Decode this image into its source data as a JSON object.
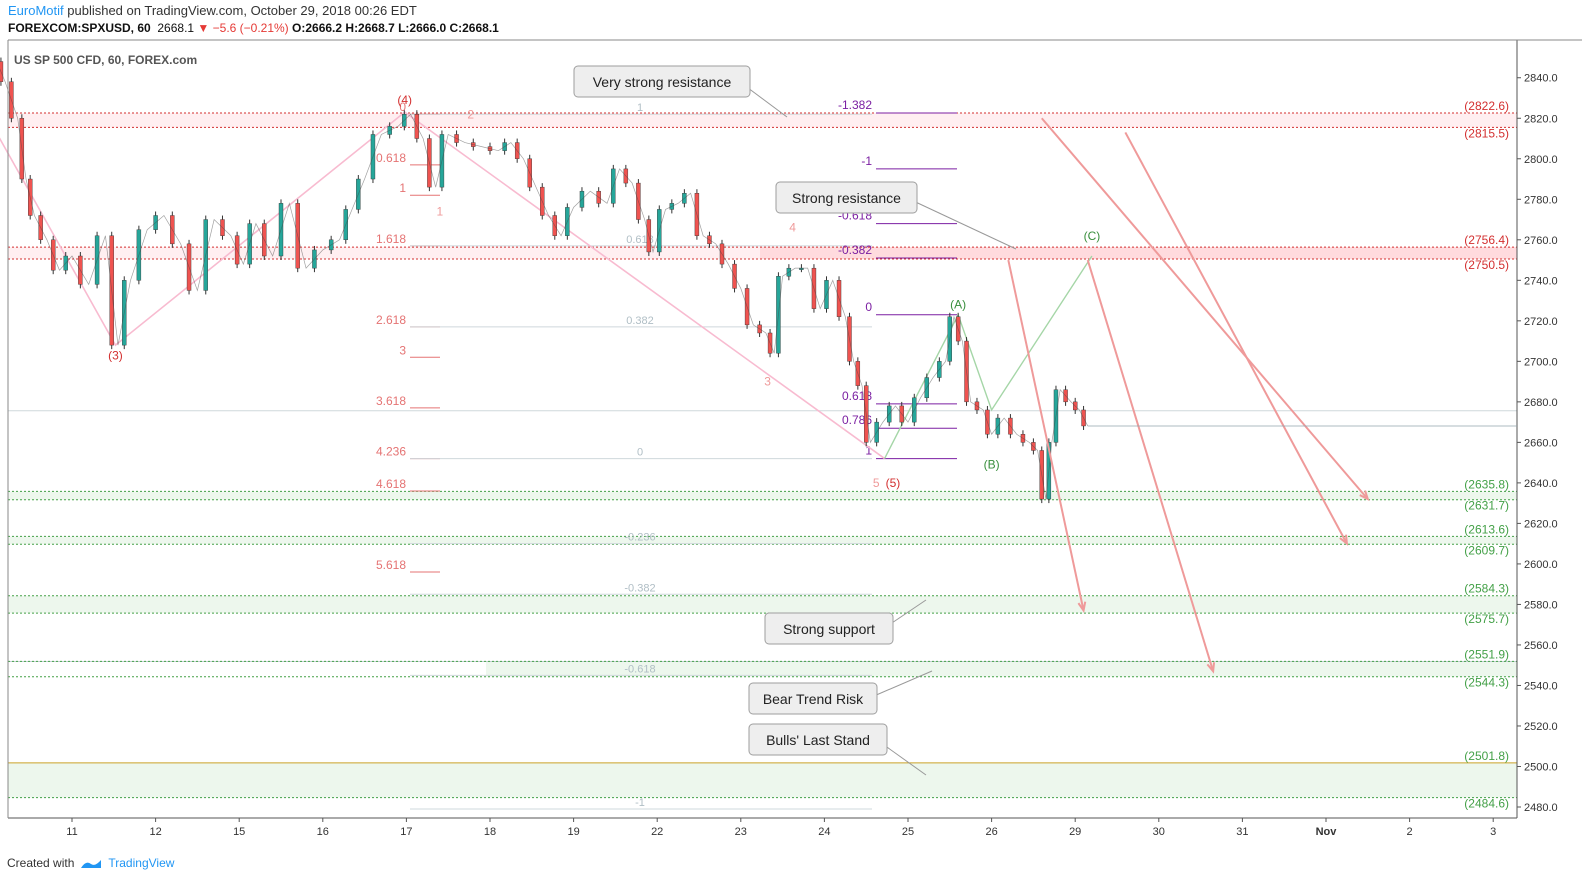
{
  "header": {
    "author": "EuroMotif",
    "published": " published on TradingView.com, October 29, 2018 00:26 EDT",
    "symbol": "FOREXCOM:SPXUSD, 60",
    "last": "2668.1",
    "change": "▼ −5.6 (−0.21%)",
    "ohlc": "O:2666.2 H:2668.7 L:2666.0 C:2668.1"
  },
  "footer": {
    "created": "Created with",
    "brand": "TradingView"
  },
  "chart_data": {
    "type": "candlestick",
    "title": "US SP 500 CFD, 60, FOREX.com",
    "ylim": [
      2472,
      2852
    ],
    "y_ticks": [
      2480,
      2500,
      2520,
      2540,
      2560,
      2580,
      2600,
      2620,
      2640,
      2660,
      2680,
      2700,
      2720,
      2740,
      2760,
      2780,
      2800,
      2820,
      2840
    ],
    "x_ticks": [
      {
        "label": "11",
        "day": 1
      },
      {
        "label": "12",
        "day": 2
      },
      {
        "label": "15",
        "day": 3
      },
      {
        "label": "16",
        "day": 4
      },
      {
        "label": "17",
        "day": 5
      },
      {
        "label": "18",
        "day": 6
      },
      {
        "label": "19",
        "day": 7
      },
      {
        "label": "22",
        "day": 8
      },
      {
        "label": "23",
        "day": 9
      },
      {
        "label": "24",
        "day": 10
      },
      {
        "label": "25",
        "day": 11
      },
      {
        "label": "26",
        "day": 12
      },
      {
        "label": "29",
        "day": 13
      },
      {
        "label": "30",
        "day": 14
      },
      {
        "label": "31",
        "day": 15
      },
      {
        "label": "Nov",
        "day": 16
      },
      {
        "label": "2",
        "day": 17
      },
      {
        "label": "3",
        "day": 18
      }
    ],
    "last_price": 2668.1,
    "price_path": [
      [
        0.1,
        2848
      ],
      [
        0.2,
        2838
      ],
      [
        0.35,
        2820
      ],
      [
        0.45,
        2790
      ],
      [
        0.55,
        2772
      ],
      [
        0.7,
        2760
      ],
      [
        0.85,
        2745
      ],
      [
        1.0,
        2752
      ],
      [
        1.2,
        2738
      ],
      [
        1.4,
        2762
      ],
      [
        1.55,
        2708
      ],
      [
        1.7,
        2740
      ],
      [
        1.9,
        2765
      ],
      [
        2.1,
        2772
      ],
      [
        2.3,
        2758
      ],
      [
        2.5,
        2735
      ],
      [
        2.7,
        2770
      ],
      [
        2.9,
        2762
      ],
      [
        3.05,
        2748
      ],
      [
        3.2,
        2768
      ],
      [
        3.4,
        2752
      ],
      [
        3.6,
        2778
      ],
      [
        3.8,
        2746
      ],
      [
        4.0,
        2755
      ],
      [
        4.2,
        2760
      ],
      [
        4.35,
        2775
      ],
      [
        4.5,
        2790
      ],
      [
        4.7,
        2812
      ],
      [
        4.9,
        2816
      ],
      [
        5.05,
        2822
      ],
      [
        5.2,
        2810
      ],
      [
        5.35,
        2786
      ],
      [
        5.5,
        2812
      ],
      [
        5.7,
        2808
      ],
      [
        5.9,
        2806
      ],
      [
        6.1,
        2804
      ],
      [
        6.25,
        2808
      ],
      [
        6.4,
        2800
      ],
      [
        6.55,
        2786
      ],
      [
        6.7,
        2772
      ],
      [
        6.85,
        2762
      ],
      [
        7.0,
        2776
      ],
      [
        7.2,
        2784
      ],
      [
        7.4,
        2778
      ],
      [
        7.55,
        2795
      ],
      [
        7.7,
        2788
      ],
      [
        7.85,
        2770
      ],
      [
        7.95,
        2754
      ],
      [
        8.1,
        2775
      ],
      [
        8.25,
        2778
      ],
      [
        8.4,
        2783
      ],
      [
        8.55,
        2762
      ],
      [
        8.7,
        2758
      ],
      [
        8.85,
        2748
      ],
      [
        9.0,
        2736
      ],
      [
        9.15,
        2718
      ],
      [
        9.3,
        2714
      ],
      [
        9.4,
        2704
      ],
      [
        9.5,
        2742
      ],
      [
        9.65,
        2746
      ],
      [
        9.8,
        2746
      ],
      [
        9.95,
        2726
      ],
      [
        10.1,
        2740
      ],
      [
        10.25,
        2722
      ],
      [
        10.35,
        2700
      ],
      [
        10.45,
        2688
      ],
      [
        10.55,
        2660
      ],
      [
        10.7,
        2670
      ],
      [
        10.85,
        2678
      ],
      [
        11.0,
        2670
      ],
      [
        11.15,
        2682
      ],
      [
        11.3,
        2692
      ],
      [
        11.45,
        2700
      ],
      [
        11.55,
        2722
      ],
      [
        11.65,
        2710
      ],
      [
        11.75,
        2680
      ],
      [
        11.9,
        2676
      ],
      [
        12.0,
        2664
      ],
      [
        12.15,
        2672
      ],
      [
        12.3,
        2664
      ],
      [
        12.45,
        2660
      ],
      [
        12.55,
        2656
      ],
      [
        12.65,
        2632
      ],
      [
        12.72,
        2660
      ],
      [
        12.82,
        2686
      ],
      [
        12.95,
        2680
      ],
      [
        13.05,
        2676
      ],
      [
        13.15,
        2668.1
      ]
    ],
    "support_resistance": [
      {
        "value": 2822.6,
        "label": "(2822.6)",
        "kind": "resistance"
      },
      {
        "value": 2815.5,
        "label": "(2815.5)",
        "kind": "resistance"
      },
      {
        "value": 2756.4,
        "label": "(2756.4)",
        "kind": "resistance"
      },
      {
        "value": 2750.5,
        "label": "(2750.5)",
        "kind": "resistance"
      },
      {
        "value": 2635.8,
        "label": "(2635.8)",
        "kind": "support"
      },
      {
        "value": 2631.7,
        "label": "(2631.7)",
        "kind": "support"
      },
      {
        "value": 2613.6,
        "label": "(2613.6)",
        "kind": "support"
      },
      {
        "value": 2609.7,
        "label": "(2609.7)",
        "kind": "support"
      },
      {
        "value": 2584.3,
        "label": "(2584.3)",
        "kind": "support"
      },
      {
        "value": 2575.7,
        "label": "(2575.7)",
        "kind": "support"
      },
      {
        "value": 2551.9,
        "label": "(2551.9)",
        "kind": "support"
      },
      {
        "value": 2544.3,
        "label": "(2544.3)",
        "kind": "support"
      },
      {
        "value": 2501.8,
        "label": "(2501.8)",
        "kind": "support"
      },
      {
        "value": 2484.6,
        "label": "(2484.6)",
        "kind": "support"
      }
    ],
    "fib_extension_red": [
      {
        "ratio": "0",
        "price": 2822
      },
      {
        "ratio": "0.618",
        "price": 2797
      },
      {
        "ratio": "1",
        "price": 2782
      },
      {
        "ratio": "1.618",
        "price": 2757
      },
      {
        "ratio": "2.618",
        "price": 2717
      },
      {
        "ratio": "3",
        "price": 2702
      },
      {
        "ratio": "3.618",
        "price": 2677
      },
      {
        "ratio": "4.236",
        "price": 2652
      },
      {
        "ratio": "4.618",
        "price": 2636
      },
      {
        "ratio": "5.618",
        "price": 2596
      }
    ],
    "fib_retracement_grey": [
      {
        "ratio": "1",
        "price": 2822
      },
      {
        "ratio": "0.618",
        "price": 2757
      },
      {
        "ratio": "0.382",
        "price": 2717
      },
      {
        "ratio": "0",
        "price": 2652
      },
      {
        "ratio": "-0.236",
        "price": 2610
      },
      {
        "ratio": "-0.382",
        "price": 2585
      },
      {
        "ratio": "-0.618",
        "price": 2545
      },
      {
        "ratio": "-1",
        "price": 2479
      }
    ],
    "fib_purple": [
      {
        "ratio": "-1.382",
        "price": 2822.6
      },
      {
        "ratio": "-1",
        "price": 2795
      },
      {
        "ratio": "-0.618",
        "price": 2768
      },
      {
        "ratio": "-0.382",
        "price": 2751
      },
      {
        "ratio": "0",
        "price": 2723
      },
      {
        "ratio": "0.618",
        "price": 2679
      },
      {
        "ratio": "0.786",
        "price": 2667
      },
      {
        "ratio": "1",
        "price": 2652
      }
    ],
    "wave_labels": [
      {
        "text": "(4)",
        "day": 4.98,
        "price": 2827,
        "color": "#d32f2f"
      },
      {
        "text": "(3)",
        "day": 1.52,
        "price": 2701,
        "color": "#d32f2f"
      },
      {
        "text": "(5)",
        "day": 10.82,
        "price": 2638,
        "color": "#d32f2f"
      },
      {
        "text": "(A)",
        "day": 11.6,
        "price": 2726,
        "color": "#388e3c"
      },
      {
        "text": "(B)",
        "day": 12.0,
        "price": 2647,
        "color": "#388e3c"
      },
      {
        "text": "(C)",
        "day": 13.2,
        "price": 2760,
        "color": "#388e3c"
      },
      {
        "text": "1",
        "day": 5.4,
        "price": 2772,
        "color": "#ef9a9a"
      },
      {
        "text": "2",
        "day": 5.77,
        "price": 2820,
        "color": "#ef9a9a"
      },
      {
        "text": "3",
        "day": 9.32,
        "price": 2688,
        "color": "#ef9a9a"
      },
      {
        "text": "4",
        "day": 9.62,
        "price": 2764,
        "color": "#ef9a9a"
      },
      {
        "text": "5",
        "day": 10.62,
        "price": 2638,
        "color": "#ef9a9a"
      }
    ],
    "callouts": [
      {
        "text": "Very strong resistance"
      },
      {
        "text": "Strong resistance"
      },
      {
        "text": "Strong support"
      },
      {
        "text": "Bear Trend Risk"
      },
      {
        "text": "Bulls' Last Stand"
      }
    ],
    "colors": {
      "up": "#26a69a",
      "down": "#ef5350",
      "candle_body": "#333333",
      "resistance": "#d32f2f",
      "support": "#43a047",
      "fib_red": "#e57373",
      "fib_purple": "#7b1fa2",
      "projection": "#ef9a9a",
      "wave_c": "#a5d6a7"
    }
  }
}
